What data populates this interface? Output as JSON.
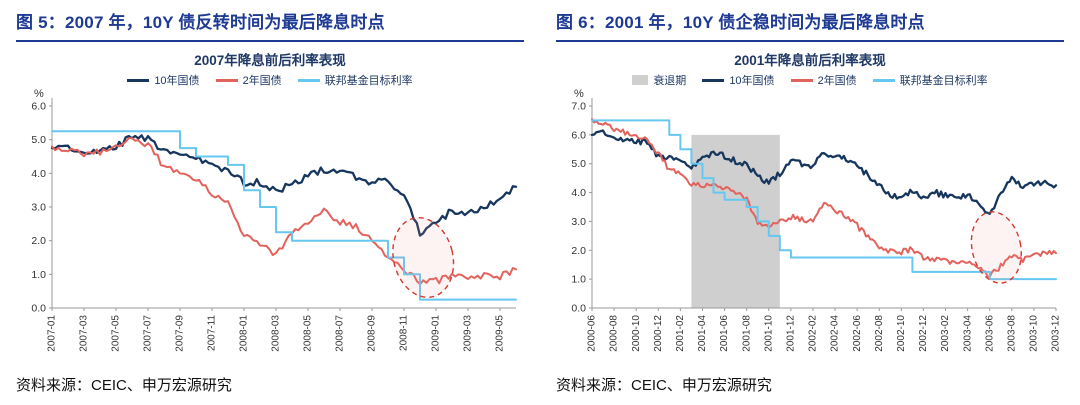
{
  "panels": [
    {
      "header": "图 5：2007 年，10Y 债反转时间为最后降息时点",
      "source": "资料来源：CEIC、申万宏源研究"
    },
    {
      "header": "图 6：2001 年，10Y 债企稳时间为最后降息时点",
      "source": "资料来源：CEIC、申万宏源研究"
    }
  ],
  "chart_data": [
    {
      "type": "line",
      "title": "2007年降息前后利率表现",
      "xlabel": "",
      "ylabel": "%",
      "ylim": [
        0,
        6
      ],
      "ytick_step": 1,
      "xtick_step": 2,
      "grid": false,
      "legend_position": "top",
      "x": [
        "2007-01",
        "2007-02",
        "2007-03",
        "2007-04",
        "2007-05",
        "2007-06",
        "2007-07",
        "2007-08",
        "2007-09",
        "2007-10",
        "2007-11",
        "2007-12",
        "2008-01",
        "2008-02",
        "2008-03",
        "2008-04",
        "2008-05",
        "2008-06",
        "2008-07",
        "2008-08",
        "2008-09",
        "2008-10",
        "2008-11",
        "2008-12",
        "2009-01",
        "2009-02",
        "2009-03",
        "2009-04",
        "2009-05",
        "2009-06"
      ],
      "series": [
        {
          "id": "treasury-10y",
          "name": "10年国债",
          "color": "#17365d",
          "width": 2.3,
          "jitter": 0.22,
          "values": [
            4.75,
            4.72,
            4.56,
            4.66,
            4.76,
            5.1,
            5.0,
            4.7,
            4.55,
            4.5,
            4.2,
            4.1,
            3.7,
            3.75,
            3.45,
            3.7,
            3.9,
            4.1,
            4.0,
            3.9,
            3.7,
            3.8,
            3.3,
            2.2,
            2.5,
            2.9,
            2.8,
            2.95,
            3.3,
            3.6
          ]
        },
        {
          "id": "treasury-2y",
          "name": "2年国债",
          "color": "#e2625c",
          "width": 2.0,
          "jitter": 0.2,
          "values": [
            4.8,
            4.7,
            4.58,
            4.65,
            4.8,
            5.05,
            4.85,
            4.2,
            4.0,
            3.85,
            3.4,
            3.1,
            2.2,
            1.9,
            1.55,
            2.3,
            2.45,
            2.9,
            2.55,
            2.4,
            2.0,
            1.55,
            1.15,
            0.8,
            0.8,
            0.95,
            0.9,
            0.95,
            0.95,
            1.15
          ]
        },
        {
          "id": "fed-funds-target",
          "name": "联邦基金目标利率",
          "color": "#66c7f0",
          "width": 2.0,
          "step": true,
          "values": [
            5.25,
            5.25,
            5.25,
            5.25,
            5.25,
            5.25,
            5.25,
            5.25,
            4.75,
            4.5,
            4.5,
            4.25,
            3.5,
            3.0,
            2.25,
            2.0,
            2.0,
            2.0,
            2.0,
            2.0,
            2.0,
            1.5,
            1.0,
            0.25,
            0.25,
            0.25,
            0.25,
            0.25,
            0.25,
            0.25
          ]
        }
      ],
      "annotation_ellipse": {
        "x_index": 23.2,
        "y": 1.5,
        "rx_months": 1.85,
        "ry": 1.2,
        "rotate": -14,
        "color": "#d0392e"
      }
    },
    {
      "type": "line",
      "title": "2001年降息前后利率表现",
      "xlabel": "",
      "ylabel": "%",
      "ylim": [
        0,
        7
      ],
      "ytick_step": 1,
      "xtick_step": 2,
      "grid": false,
      "legend_position": "top",
      "x": [
        "2000-06",
        "2000-07",
        "2000-08",
        "2000-09",
        "2000-10",
        "2000-11",
        "2000-12",
        "2001-01",
        "2001-02",
        "2001-03",
        "2001-04",
        "2001-05",
        "2001-06",
        "2001-07",
        "2001-08",
        "2001-09",
        "2001-10",
        "2001-11",
        "2001-12",
        "2002-01",
        "2002-02",
        "2002-03",
        "2002-04",
        "2002-05",
        "2002-06",
        "2002-07",
        "2002-08",
        "2002-09",
        "2002-10",
        "2002-11",
        "2002-12",
        "2003-01",
        "2003-02",
        "2003-03",
        "2003-04",
        "2003-05",
        "2003-06",
        "2003-07",
        "2003-08",
        "2003-09",
        "2003-10",
        "2003-11",
        "2003-12"
      ],
      "recession": {
        "label": "衰退期",
        "color": "#cfcfcf",
        "from_index": 9,
        "to_index": 17,
        "top": 6.0
      },
      "series": [
        {
          "id": "treasury-10y",
          "name": "10年国债",
          "color": "#17365d",
          "width": 2.3,
          "jitter": 0.22,
          "values": [
            6.0,
            6.05,
            5.85,
            5.8,
            5.75,
            5.75,
            5.2,
            5.25,
            5.1,
            4.9,
            5.15,
            5.4,
            5.25,
            5.1,
            4.95,
            4.6,
            4.3,
            4.65,
            5.05,
            5.0,
            4.9,
            5.4,
            5.2,
            5.15,
            4.9,
            4.6,
            4.25,
            3.85,
            3.9,
            4.05,
            3.85,
            4.0,
            3.9,
            3.8,
            3.95,
            3.55,
            3.3,
            3.95,
            4.45,
            4.25,
            4.3,
            4.3,
            4.25
          ]
        },
        {
          "id": "treasury-2y",
          "name": "2年国债",
          "color": "#e2625c",
          "width": 2.0,
          "jitter": 0.2,
          "values": [
            6.55,
            6.4,
            6.2,
            6.1,
            5.95,
            5.85,
            5.35,
            4.8,
            4.65,
            4.3,
            4.25,
            4.25,
            4.2,
            4.0,
            3.75,
            3.0,
            2.75,
            3.0,
            3.15,
            3.05,
            3.0,
            3.7,
            3.4,
            3.2,
            2.85,
            2.45,
            2.1,
            1.95,
            1.95,
            2.05,
            1.75,
            1.7,
            1.6,
            1.55,
            1.6,
            1.35,
            1.1,
            1.45,
            1.85,
            1.65,
            1.8,
            1.95,
            1.9
          ]
        },
        {
          "id": "fed-funds-target",
          "name": "联邦基金目标利率",
          "color": "#66c7f0",
          "width": 2.0,
          "step": true,
          "values": [
            6.5,
            6.5,
            6.5,
            6.5,
            6.5,
            6.5,
            6.5,
            6.0,
            5.5,
            5.0,
            4.5,
            4.0,
            3.75,
            3.75,
            3.5,
            3.0,
            2.5,
            2.0,
            1.75,
            1.75,
            1.75,
            1.75,
            1.75,
            1.75,
            1.75,
            1.75,
            1.75,
            1.75,
            1.75,
            1.25,
            1.25,
            1.25,
            1.25,
            1.25,
            1.25,
            1.25,
            1.0,
            1.0,
            1.0,
            1.0,
            1.0,
            1.0,
            1.0
          ]
        }
      ],
      "annotation_ellipse": {
        "x_index": 36.6,
        "y": 2.1,
        "rx_months": 2.2,
        "ry": 1.25,
        "rotate": -12,
        "color": "#d0392e"
      }
    }
  ]
}
